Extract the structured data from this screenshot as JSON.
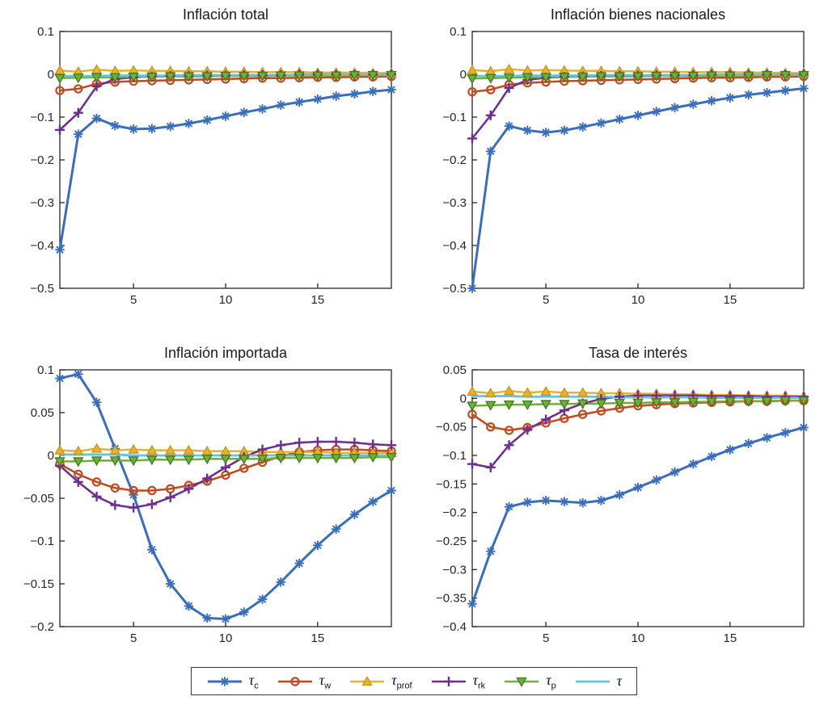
{
  "figure": {
    "background": "#ffffff",
    "axis_color": "#262626",
    "legend_position": "bottom"
  },
  "series_styles": [
    {
      "id": "tau_c",
      "color": "#3a6ebc",
      "edge": "#3a6ebc",
      "marker": "asterisk",
      "line_width": 3
    },
    {
      "id": "tau_w",
      "color": "#bf4a1f",
      "edge": "#bf4a1f",
      "marker": "circle",
      "line_width": 2.5
    },
    {
      "id": "tau_prof",
      "color": "#e8b22e",
      "edge": "#c8941f",
      "marker": "triangle-up",
      "line_width": 2.5
    },
    {
      "id": "tau_rk",
      "color": "#6e2d91",
      "edge": "#6e2d91",
      "marker": "plus",
      "line_width": 2.5
    },
    {
      "id": "tau_p",
      "color": "#6fae3a",
      "edge": "#3f7a1e",
      "marker": "triangle-down",
      "line_width": 2.5
    },
    {
      "id": "tau",
      "color": "#62c1e5",
      "edge": "#62c1e5",
      "marker": "none",
      "line_width": 2.8
    }
  ],
  "legend": {
    "entries": [
      {
        "series": "tau_c",
        "base": "τ",
        "sub": "c"
      },
      {
        "series": "tau_w",
        "base": "τ",
        "sub": "w"
      },
      {
        "series": "tau_prof",
        "base": "τ",
        "sub": "prof"
      },
      {
        "series": "tau_rk",
        "base": "τ",
        "sub": "rk"
      },
      {
        "series": "tau_p",
        "base": "τ",
        "sub": "p"
      },
      {
        "series": "tau",
        "base": "τ",
        "sub": ""
      }
    ]
  },
  "chart_data": [
    {
      "type": "line",
      "title": "Inflación total",
      "xlabel": "",
      "ylabel": "",
      "x": [
        1,
        2,
        3,
        4,
        5,
        6,
        7,
        8,
        9,
        10,
        11,
        12,
        13,
        14,
        15,
        16,
        17,
        18,
        19
      ],
      "xticks": [
        5,
        10,
        15
      ],
      "ylim": [
        -0.5,
        0.1
      ],
      "yticks": [
        0.1,
        0,
        -0.1,
        -0.2,
        -0.3,
        -0.4,
        -0.5
      ],
      "grid": false,
      "series": [
        {
          "name": "tau_c",
          "values": [
            -0.41,
            -0.14,
            -0.103,
            -0.12,
            -0.128,
            -0.127,
            -0.122,
            -0.115,
            -0.107,
            -0.098,
            -0.089,
            -0.081,
            -0.072,
            -0.065,
            -0.058,
            -0.051,
            -0.046,
            -0.04,
            -0.036
          ]
        },
        {
          "name": "tau_w",
          "values": [
            -0.038,
            -0.034,
            -0.022,
            -0.018,
            -0.016,
            -0.015,
            -0.014,
            -0.013,
            -0.012,
            -0.011,
            -0.01,
            -0.009,
            -0.009,
            -0.008,
            -0.007,
            -0.007,
            -0.006,
            -0.006,
            -0.005
          ]
        },
        {
          "name": "tau_prof",
          "values": [
            0.009,
            0.006,
            0.011,
            0.008,
            0.009,
            0.008,
            0.008,
            0.007,
            0.007,
            0.006,
            0.006,
            0.005,
            0.005,
            0.005,
            0.004,
            0.004,
            0.004,
            0.003,
            0.003
          ]
        },
        {
          "name": "tau_rk",
          "values": [
            -0.13,
            -0.09,
            -0.028,
            -0.011,
            -0.007,
            -0.005,
            -0.004,
            -0.004,
            -0.003,
            -0.003,
            -0.002,
            -0.002,
            -0.002,
            -0.001,
            -0.001,
            -0.001,
            -0.001,
            -0.001,
            0
          ]
        },
        {
          "name": "tau_p",
          "values": [
            -0.009,
            -0.008,
            -0.007,
            -0.007,
            -0.006,
            -0.006,
            -0.005,
            -0.005,
            -0.005,
            -0.004,
            -0.004,
            -0.004,
            -0.003,
            -0.003,
            -0.003,
            -0.003,
            -0.002,
            -0.002,
            -0.002
          ]
        },
        {
          "name": "tau",
          "values": [
            -0.004,
            -0.004,
            -0.004,
            -0.003,
            -0.003,
            -0.003,
            -0.003,
            -0.002,
            -0.002,
            -0.002,
            -0.002,
            -0.002,
            -0.002,
            -0.001,
            -0.001,
            -0.001,
            -0.001,
            -0.001,
            -0.001
          ]
        }
      ]
    },
    {
      "type": "line",
      "title": "Inflación bienes nacionales",
      "xlabel": "",
      "ylabel": "",
      "x": [
        1,
        2,
        3,
        4,
        5,
        6,
        7,
        8,
        9,
        10,
        11,
        12,
        13,
        14,
        15,
        16,
        17,
        18,
        19
      ],
      "xticks": [
        5,
        10,
        15
      ],
      "ylim": [
        -0.5,
        0.1
      ],
      "yticks": [
        0.1,
        0,
        -0.1,
        -0.2,
        -0.3,
        -0.4,
        -0.5
      ],
      "grid": false,
      "series": [
        {
          "name": "tau_c",
          "values": [
            -0.5,
            -0.18,
            -0.121,
            -0.131,
            -0.136,
            -0.131,
            -0.123,
            -0.114,
            -0.105,
            -0.096,
            -0.087,
            -0.078,
            -0.07,
            -0.062,
            -0.055,
            -0.048,
            -0.043,
            -0.038,
            -0.033
          ]
        },
        {
          "name": "tau_w",
          "values": [
            -0.041,
            -0.036,
            -0.024,
            -0.02,
            -0.018,
            -0.016,
            -0.015,
            -0.014,
            -0.013,
            -0.012,
            -0.011,
            -0.01,
            -0.009,
            -0.008,
            -0.008,
            -0.007,
            -0.006,
            -0.006,
            -0.005
          ]
        },
        {
          "name": "tau_prof",
          "values": [
            0.01,
            0.007,
            0.012,
            0.009,
            0.01,
            0.009,
            0.008,
            0.008,
            0.007,
            0.007,
            0.006,
            0.006,
            0.005,
            0.005,
            0.005,
            0.004,
            0.004,
            0.003,
            0.003
          ]
        },
        {
          "name": "tau_rk",
          "values": [
            -0.15,
            -0.096,
            -0.032,
            -0.013,
            -0.008,
            -0.006,
            -0.005,
            -0.004,
            -0.003,
            -0.003,
            -0.002,
            -0.002,
            -0.002,
            -0.001,
            -0.001,
            -0.001,
            -0.001,
            -0.001,
            0
          ]
        },
        {
          "name": "tau_p",
          "values": [
            -0.01,
            -0.009,
            -0.008,
            -0.007,
            -0.007,
            -0.006,
            -0.006,
            -0.005,
            -0.005,
            -0.005,
            -0.004,
            -0.004,
            -0.004,
            -0.003,
            -0.003,
            -0.003,
            -0.002,
            -0.002,
            -0.002
          ]
        },
        {
          "name": "tau",
          "values": [
            -0.004,
            -0.004,
            -0.004,
            -0.003,
            -0.003,
            -0.003,
            -0.003,
            -0.002,
            -0.002,
            -0.002,
            -0.002,
            -0.002,
            -0.002,
            -0.001,
            -0.001,
            -0.001,
            -0.001,
            -0.001,
            -0.001
          ]
        }
      ]
    },
    {
      "type": "line",
      "title": "Inflación importada",
      "xlabel": "",
      "ylabel": "",
      "x": [
        1,
        2,
        3,
        4,
        5,
        6,
        7,
        8,
        9,
        10,
        11,
        12,
        13,
        14,
        15,
        16,
        17,
        18,
        19
      ],
      "xticks": [
        5,
        10,
        15
      ],
      "ylim": [
        -0.2,
        0.1
      ],
      "yticks": [
        0.1,
        0.05,
        0,
        -0.05,
        -0.1,
        -0.15,
        -0.2
      ],
      "grid": false,
      "series": [
        {
          "name": "tau_c",
          "values": [
            0.09,
            0.095,
            0.062,
            0.008,
            -0.046,
            -0.11,
            -0.15,
            -0.176,
            -0.19,
            -0.191,
            -0.183,
            -0.168,
            -0.148,
            -0.126,
            -0.105,
            -0.086,
            -0.069,
            -0.054,
            -0.041
          ]
        },
        {
          "name": "tau_w",
          "values": [
            -0.01,
            -0.022,
            -0.031,
            -0.038,
            -0.041,
            -0.041,
            -0.039,
            -0.035,
            -0.03,
            -0.023,
            -0.015,
            -0.008,
            -0.001,
            0.004,
            0.006,
            0.007,
            0.007,
            0.006,
            0.005
          ]
        },
        {
          "name": "tau_prof",
          "values": [
            0.006,
            0.005,
            0.008,
            0.006,
            0.007,
            0.006,
            0.006,
            0.006,
            0.005,
            0.005,
            0.005,
            0.004,
            0.004,
            0.004,
            0.004,
            0.003,
            0.003,
            0.003,
            0.003
          ]
        },
        {
          "name": "tau_rk",
          "values": [
            -0.012,
            -0.031,
            -0.048,
            -0.058,
            -0.061,
            -0.057,
            -0.049,
            -0.039,
            -0.027,
            -0.014,
            -0.002,
            0.007,
            0.012,
            0.015,
            0.016,
            0.016,
            0.015,
            0.013,
            0.012
          ]
        },
        {
          "name": "tau_p",
          "values": [
            -0.007,
            -0.007,
            -0.006,
            -0.006,
            -0.006,
            -0.005,
            -0.005,
            -0.005,
            -0.004,
            -0.004,
            -0.004,
            -0.004,
            -0.003,
            -0.003,
            -0.003,
            -0.003,
            -0.003,
            -0.002,
            -0.002
          ]
        },
        {
          "name": "tau",
          "values": [
            0.001,
            0.001,
            0.001,
            0.001,
            0,
            0,
            0,
            0,
            0,
            0,
            0,
            0,
            0,
            0,
            0,
            0,
            0,
            0,
            0
          ]
        }
      ]
    },
    {
      "type": "line",
      "title": "Tasa de interés",
      "xlabel": "",
      "ylabel": "",
      "x": [
        1,
        2,
        3,
        4,
        5,
        6,
        7,
        8,
        9,
        10,
        11,
        12,
        13,
        14,
        15,
        16,
        17,
        18,
        19
      ],
      "xticks": [
        5,
        10,
        15
      ],
      "ylim": [
        -0.4,
        0.05
      ],
      "yticks": [
        0.05,
        0,
        -0.05,
        -0.1,
        -0.15,
        -0.2,
        -0.25,
        -0.3,
        -0.35,
        -0.4
      ],
      "grid": false,
      "series": [
        {
          "name": "tau_c",
          "values": [
            -0.36,
            -0.268,
            -0.19,
            -0.182,
            -0.179,
            -0.181,
            -0.183,
            -0.179,
            -0.169,
            -0.156,
            -0.143,
            -0.129,
            -0.115,
            -0.102,
            -0.09,
            -0.079,
            -0.069,
            -0.06,
            -0.051
          ]
        },
        {
          "name": "tau_w",
          "values": [
            -0.028,
            -0.05,
            -0.056,
            -0.051,
            -0.043,
            -0.035,
            -0.028,
            -0.022,
            -0.017,
            -0.013,
            -0.011,
            -0.009,
            -0.008,
            -0.007,
            -0.006,
            -0.005,
            -0.005,
            -0.004,
            -0.004
          ]
        },
        {
          "name": "tau_prof",
          "values": [
            0.012,
            0.009,
            0.013,
            0.01,
            0.012,
            0.01,
            0.01,
            0.009,
            0.009,
            0.008,
            0.008,
            0.007,
            0.007,
            0.006,
            0.006,
            0.005,
            0.005,
            0.005,
            0.004
          ]
        },
        {
          "name": "tau_rk",
          "values": [
            -0.115,
            -0.121,
            -0.082,
            -0.055,
            -0.037,
            -0.021,
            -0.009,
            -0.001,
            0.003,
            0.005,
            0.005,
            0.005,
            0.005,
            0.004,
            0.004,
            0.004,
            0.003,
            0.003,
            0.003
          ]
        },
        {
          "name": "tau_p",
          "values": [
            -0.013,
            -0.012,
            -0.011,
            -0.011,
            -0.01,
            -0.01,
            -0.009,
            -0.009,
            -0.008,
            -0.008,
            -0.007,
            -0.007,
            -0.006,
            -0.006,
            -0.005,
            -0.005,
            -0.005,
            -0.004,
            -0.004
          ]
        },
        {
          "name": "tau",
          "values": [
            0.004,
            0.004,
            0.004,
            0.003,
            0.003,
            0.003,
            0.003,
            0.003,
            0.002,
            0.002,
            0.002,
            0.002,
            0.002,
            0.001,
            0.001,
            0.001,
            0.001,
            0.001,
            0.001
          ]
        }
      ]
    }
  ]
}
